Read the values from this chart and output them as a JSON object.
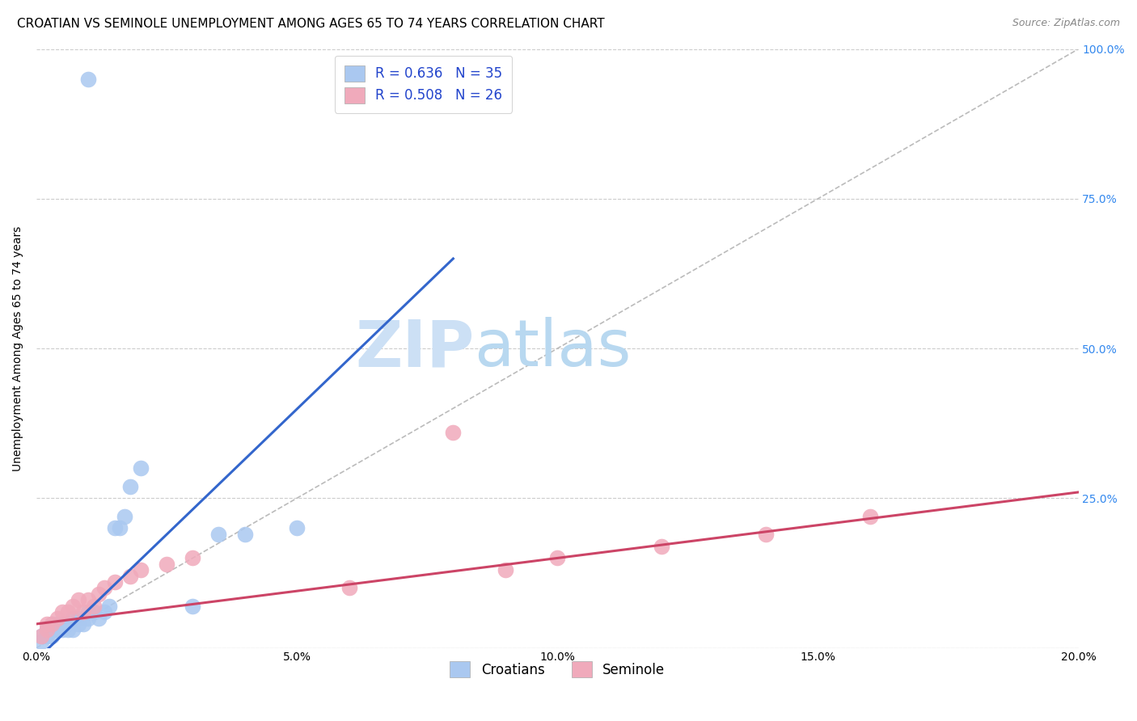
{
  "title": "CROATIAN VS SEMINOLE UNEMPLOYMENT AMONG AGES 65 TO 74 YEARS CORRELATION CHART",
  "source": "Source: ZipAtlas.com",
  "ylabel": "Unemployment Among Ages 65 to 74 years",
  "xlim": [
    0,
    0.2
  ],
  "ylim": [
    0,
    1.0
  ],
  "xticks": [
    0.0,
    0.05,
    0.1,
    0.15,
    0.2
  ],
  "yticks": [
    0.0,
    0.25,
    0.5,
    0.75,
    1.0
  ],
  "right_ytick_labels": [
    "",
    "25.0%",
    "50.0%",
    "75.0%",
    "100.0%"
  ],
  "xtick_labels": [
    "0.0%",
    "5.0%",
    "10.0%",
    "15.0%",
    "20.0%"
  ],
  "croatians_x": [
    0.001,
    0.001,
    0.002,
    0.002,
    0.002,
    0.003,
    0.003,
    0.003,
    0.004,
    0.004,
    0.005,
    0.005,
    0.006,
    0.006,
    0.007,
    0.007,
    0.008,
    0.008,
    0.009,
    0.01,
    0.01,
    0.011,
    0.012,
    0.013,
    0.014,
    0.015,
    0.016,
    0.017,
    0.018,
    0.02,
    0.03,
    0.035,
    0.04,
    0.05,
    0.01
  ],
  "croatians_y": [
    0.01,
    0.02,
    0.02,
    0.03,
    0.03,
    0.02,
    0.03,
    0.04,
    0.03,
    0.04,
    0.03,
    0.04,
    0.03,
    0.04,
    0.03,
    0.05,
    0.04,
    0.05,
    0.04,
    0.05,
    0.06,
    0.06,
    0.05,
    0.06,
    0.07,
    0.2,
    0.2,
    0.22,
    0.27,
    0.3,
    0.07,
    0.19,
    0.19,
    0.2,
    0.95
  ],
  "seminole_x": [
    0.001,
    0.002,
    0.002,
    0.003,
    0.004,
    0.005,
    0.006,
    0.007,
    0.008,
    0.009,
    0.01,
    0.011,
    0.012,
    0.013,
    0.015,
    0.018,
    0.02,
    0.025,
    0.06,
    0.08,
    0.1,
    0.12,
    0.14,
    0.16,
    0.09,
    0.03
  ],
  "seminole_y": [
    0.02,
    0.03,
    0.04,
    0.04,
    0.05,
    0.06,
    0.06,
    0.07,
    0.08,
    0.06,
    0.08,
    0.07,
    0.09,
    0.1,
    0.11,
    0.12,
    0.13,
    0.14,
    0.1,
    0.36,
    0.15,
    0.17,
    0.19,
    0.22,
    0.13,
    0.15
  ],
  "croatian_R": 0.636,
  "croatian_N": 35,
  "seminole_R": 0.508,
  "seminole_N": 26,
  "croatian_color": "#aac8f0",
  "seminole_color": "#f0aabb",
  "croatian_line_color": "#3366cc",
  "seminole_line_color": "#cc4466",
  "ref_line_color": "#bbbbbb",
  "background_color": "#ffffff",
  "watermark_zip": "ZIP",
  "watermark_atlas": "atlas",
  "watermark_color_zip": "#cce0f5",
  "watermark_color_atlas": "#b8d8f0",
  "title_fontsize": 11,
  "axis_label_fontsize": 10,
  "tick_fontsize": 10,
  "legend_fontsize": 12,
  "croatian_line_x0": 0.0,
  "croatian_line_y0": -0.02,
  "croatian_line_x1": 0.08,
  "croatian_line_y1": 0.65,
  "seminole_line_x0": 0.0,
  "seminole_line_y0": 0.04,
  "seminole_line_x1": 0.2,
  "seminole_line_y1": 0.26
}
